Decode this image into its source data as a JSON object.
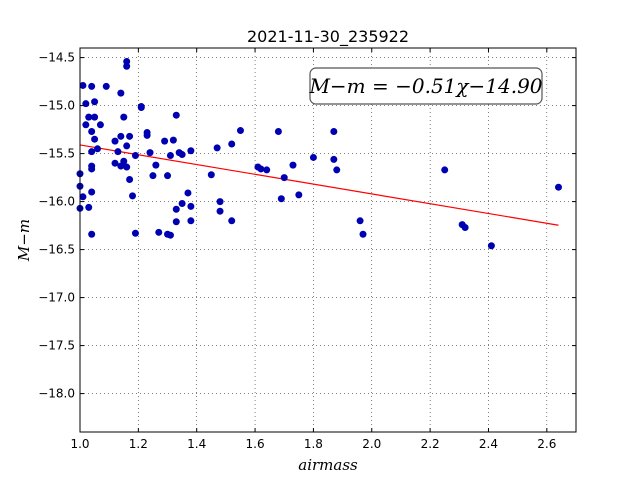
{
  "chart_data": {
    "type": "scatter",
    "title": "2021-11-30_235922",
    "xlabel": "airmass",
    "ylabel": "M−m",
    "xlim": [
      1.0,
      2.7
    ],
    "ylim": [
      -18.4,
      -14.4
    ],
    "y_inverted": true,
    "grid": true,
    "xticks": [
      1.0,
      1.2,
      1.4,
      1.6,
      1.8,
      2.0,
      2.2,
      2.4,
      2.6
    ],
    "xtick_labels": [
      "1.0",
      "1.2",
      "1.4",
      "1.6",
      "1.8",
      "2.0",
      "2.2",
      "2.4",
      "2.6"
    ],
    "yticks": [
      -14.5,
      -15.0,
      -15.5,
      -16.0,
      -16.5,
      -17.0,
      -17.5,
      -18.0
    ],
    "ytick_labels": [
      "−14.5",
      "−15.0",
      "−15.5",
      "−16.0",
      "−16.5",
      "−17.0",
      "−17.5",
      "−18.0"
    ],
    "annotation": "M−m = −0.51χ−14.90",
    "fit": {
      "slope": -0.51,
      "intercept": -14.9,
      "x_range": [
        1.0,
        2.64
      ],
      "color": "#ff0000"
    },
    "point_color": "#0000b3",
    "points": [
      [
        1.0,
        -15.71
      ],
      [
        1.0,
        -15.84
      ],
      [
        1.0,
        -16.07
      ],
      [
        1.01,
        -14.79
      ],
      [
        1.01,
        -15.95
      ],
      [
        1.02,
        -14.98
      ],
      [
        1.02,
        -15.2
      ],
      [
        1.03,
        -16.06
      ],
      [
        1.03,
        -15.12
      ],
      [
        1.04,
        -14.8
      ],
      [
        1.04,
        -15.27
      ],
      [
        1.04,
        -15.48
      ],
      [
        1.04,
        -15.63
      ],
      [
        1.04,
        -15.66
      ],
      [
        1.04,
        -15.9
      ],
      [
        1.04,
        -16.34
      ],
      [
        1.05,
        -14.96
      ],
      [
        1.05,
        -15.12
      ],
      [
        1.05,
        -15.35
      ],
      [
        1.06,
        -15.45
      ],
      [
        1.07,
        -15.2
      ],
      [
        1.09,
        -14.8
      ],
      [
        1.12,
        -15.37
      ],
      [
        1.12,
        -15.6
      ],
      [
        1.13,
        -15.48
      ],
      [
        1.14,
        -14.87
      ],
      [
        1.14,
        -15.63
      ],
      [
        1.14,
        -15.32
      ],
      [
        1.15,
        -15.12
      ],
      [
        1.15,
        -15.58
      ],
      [
        1.16,
        -14.54
      ],
      [
        1.16,
        -14.59
      ],
      [
        1.16,
        -15.64
      ],
      [
        1.16,
        -15.42
      ],
      [
        1.17,
        -15.32
      ],
      [
        1.17,
        -15.77
      ],
      [
        1.18,
        -15.94
      ],
      [
        1.19,
        -15.52
      ],
      [
        1.19,
        -16.33
      ],
      [
        1.21,
        -15.01
      ],
      [
        1.21,
        -15.02
      ],
      [
        1.23,
        -15.28
      ],
      [
        1.23,
        -15.31
      ],
      [
        1.24,
        -15.49
      ],
      [
        1.25,
        -15.73
      ],
      [
        1.26,
        -15.62
      ],
      [
        1.27,
        -16.32
      ],
      [
        1.29,
        -15.37
      ],
      [
        1.3,
        -15.73
      ],
      [
        1.3,
        -16.34
      ],
      [
        1.31,
        -16.35
      ],
      [
        1.31,
        -15.52
      ],
      [
        1.32,
        -15.36
      ],
      [
        1.33,
        -15.1
      ],
      [
        1.33,
        -16.08
      ],
      [
        1.33,
        -16.21
      ],
      [
        1.34,
        -15.49
      ],
      [
        1.35,
        -15.51
      ],
      [
        1.35,
        -16.02
      ],
      [
        1.37,
        -15.91
      ],
      [
        1.38,
        -15.47
      ],
      [
        1.38,
        -16.05
      ],
      [
        1.38,
        -16.2
      ],
      [
        1.45,
        -15.72
      ],
      [
        1.47,
        -15.44
      ],
      [
        1.48,
        -16.0
      ],
      [
        1.48,
        -16.1
      ],
      [
        1.52,
        -15.4
      ],
      [
        1.52,
        -16.2
      ],
      [
        1.55,
        -15.26
      ],
      [
        1.61,
        -15.64
      ],
      [
        1.62,
        -15.66
      ],
      [
        1.64,
        -15.67
      ],
      [
        1.68,
        -15.27
      ],
      [
        1.69,
        -15.97
      ],
      [
        1.7,
        -15.75
      ],
      [
        1.73,
        -15.62
      ],
      [
        1.75,
        -15.93
      ],
      [
        1.8,
        -15.54
      ],
      [
        1.87,
        -15.27
      ],
      [
        1.87,
        -15.56
      ],
      [
        1.88,
        -15.67
      ],
      [
        1.96,
        -16.2
      ],
      [
        1.97,
        -16.34
      ],
      [
        2.25,
        -15.67
      ],
      [
        2.31,
        -16.24
      ],
      [
        2.32,
        -16.27
      ],
      [
        2.41,
        -16.46
      ],
      [
        2.64,
        -15.85
      ]
    ]
  }
}
